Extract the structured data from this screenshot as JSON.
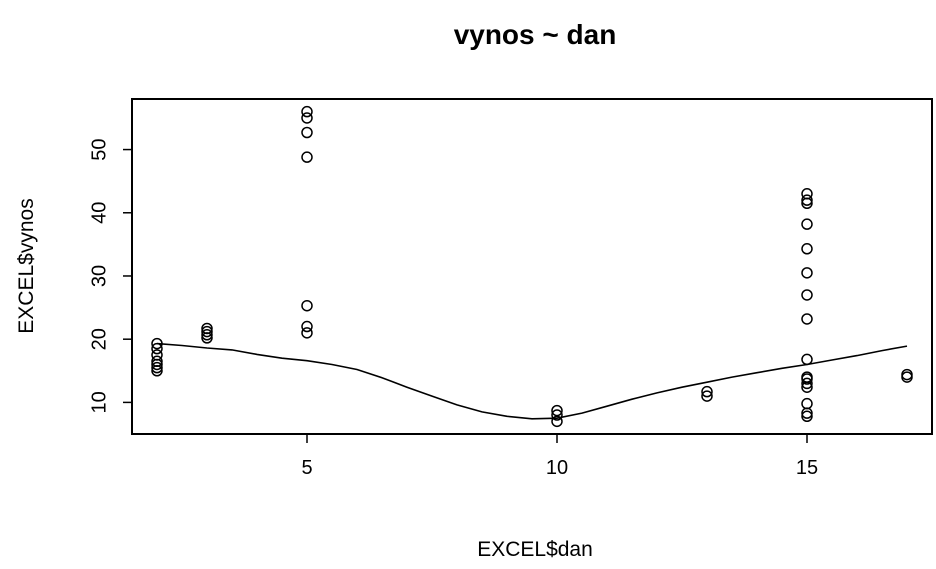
{
  "chart_data": {
    "type": "scatter",
    "title": "vynos ~ dan",
    "xlabel": "EXCEL$dan",
    "ylabel": "EXCEL$vynos",
    "xlim": [
      1.5,
      17.5
    ],
    "ylim": [
      5,
      58
    ],
    "x_ticks": [
      5,
      10,
      15
    ],
    "y_ticks": [
      10,
      20,
      30,
      40,
      50
    ],
    "grid": false,
    "legend": "none",
    "points": [
      {
        "x": 2,
        "y": 15.0
      },
      {
        "x": 2,
        "y": 15.5
      },
      {
        "x": 2,
        "y": 16.0
      },
      {
        "x": 2,
        "y": 16.5
      },
      {
        "x": 2,
        "y": 17.5
      },
      {
        "x": 2,
        "y": 18.5
      },
      {
        "x": 2,
        "y": 19.3
      },
      {
        "x": 3,
        "y": 20.2
      },
      {
        "x": 3,
        "y": 20.7
      },
      {
        "x": 3,
        "y": 21.2
      },
      {
        "x": 3,
        "y": 21.7
      },
      {
        "x": 5,
        "y": 21.0
      },
      {
        "x": 5,
        "y": 22.0
      },
      {
        "x": 5,
        "y": 25.3
      },
      {
        "x": 5,
        "y": 48.8
      },
      {
        "x": 5,
        "y": 52.7
      },
      {
        "x": 5,
        "y": 55.0
      },
      {
        "x": 5,
        "y": 56.0
      },
      {
        "x": 10,
        "y": 7.0
      },
      {
        "x": 10,
        "y": 8.0
      },
      {
        "x": 10,
        "y": 8.7
      },
      {
        "x": 13,
        "y": 11.0
      },
      {
        "x": 13,
        "y": 11.7
      },
      {
        "x": 15,
        "y": 7.8
      },
      {
        "x": 15,
        "y": 8.3
      },
      {
        "x": 15,
        "y": 9.8
      },
      {
        "x": 15,
        "y": 12.4
      },
      {
        "x": 15,
        "y": 13.0
      },
      {
        "x": 15,
        "y": 13.7
      },
      {
        "x": 15,
        "y": 14.0
      },
      {
        "x": 15,
        "y": 16.8
      },
      {
        "x": 15,
        "y": 23.2
      },
      {
        "x": 15,
        "y": 27.0
      },
      {
        "x": 15,
        "y": 30.5
      },
      {
        "x": 15,
        "y": 34.3
      },
      {
        "x": 15,
        "y": 38.2
      },
      {
        "x": 15,
        "y": 41.5
      },
      {
        "x": 15,
        "y": 42.0
      },
      {
        "x": 15,
        "y": 43.0
      },
      {
        "x": 17,
        "y": 14.0
      },
      {
        "x": 17,
        "y": 14.4
      }
    ],
    "smooth_line": [
      {
        "x": 2,
        "y": 19.3
      },
      {
        "x": 2.5,
        "y": 19.0
      },
      {
        "x": 3,
        "y": 18.6
      },
      {
        "x": 3.5,
        "y": 18.3
      },
      {
        "x": 4,
        "y": 17.6
      },
      {
        "x": 4.5,
        "y": 17.0
      },
      {
        "x": 5,
        "y": 16.6
      },
      {
        "x": 5.5,
        "y": 16.0
      },
      {
        "x": 6,
        "y": 15.2
      },
      {
        "x": 6.5,
        "y": 13.9
      },
      {
        "x": 7,
        "y": 12.4
      },
      {
        "x": 7.5,
        "y": 11.0
      },
      {
        "x": 8,
        "y": 9.6
      },
      {
        "x": 8.5,
        "y": 8.5
      },
      {
        "x": 9,
        "y": 7.8
      },
      {
        "x": 9.5,
        "y": 7.4
      },
      {
        "x": 10,
        "y": 7.5
      },
      {
        "x": 10.5,
        "y": 8.3
      },
      {
        "x": 11,
        "y": 9.4
      },
      {
        "x": 11.5,
        "y": 10.5
      },
      {
        "x": 12,
        "y": 11.5
      },
      {
        "x": 12.5,
        "y": 12.4
      },
      {
        "x": 13,
        "y": 13.2
      },
      {
        "x": 13.5,
        "y": 14.0
      },
      {
        "x": 14,
        "y": 14.7
      },
      {
        "x": 14.5,
        "y": 15.4
      },
      {
        "x": 15,
        "y": 16.0
      },
      {
        "x": 15.5,
        "y": 16.7
      },
      {
        "x": 16,
        "y": 17.4
      },
      {
        "x": 16.5,
        "y": 18.2
      },
      {
        "x": 17,
        "y": 18.9
      }
    ]
  }
}
